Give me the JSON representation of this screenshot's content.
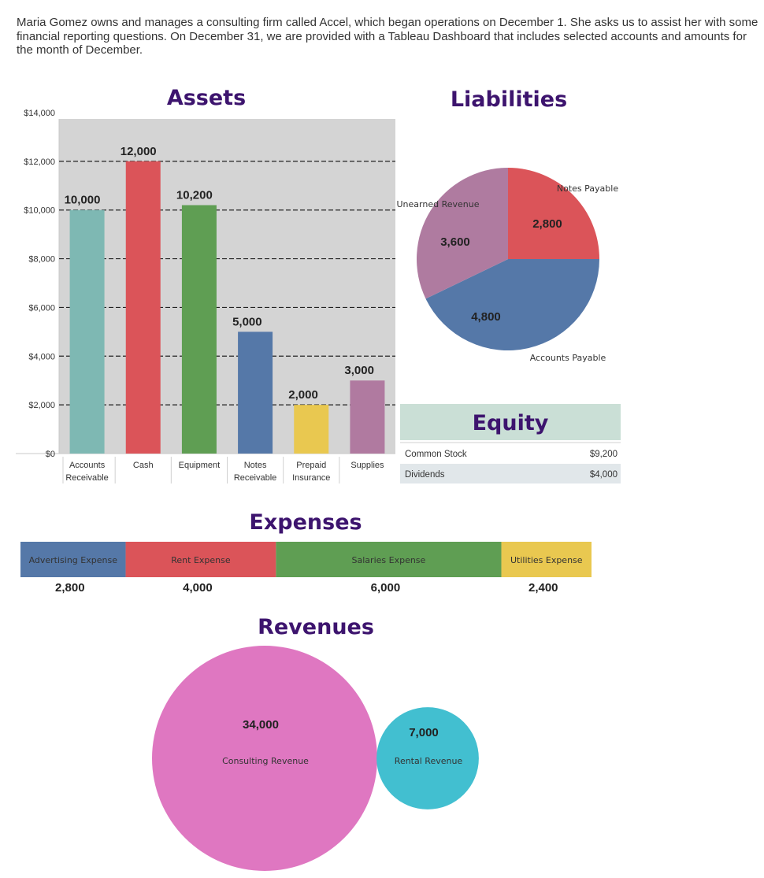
{
  "intro_text": "Maria Gomez owns and manages a consulting firm called Accel, which began operations on December 1. She asks us to assist her with some financial reporting questions. On December 31, we are provided with a Tableau Dashboard that includes selected accounts and amounts for the month of December.",
  "chart_data": [
    {
      "id": "assets",
      "type": "bar",
      "title": "Assets",
      "categories": [
        [
          "Accounts",
          "Receivable"
        ],
        [
          "Cash"
        ],
        [
          "Equipment"
        ],
        [
          "Notes",
          "Receivable"
        ],
        [
          "Prepaid",
          "Insurance"
        ],
        [
          "Supplies"
        ]
      ],
      "values": [
        10000,
        12000,
        10200,
        5000,
        2000,
        3000
      ],
      "value_labels": [
        "10,000",
        "12,000",
        "10,200",
        "5,000",
        "2,000",
        "3,000"
      ],
      "colors": [
        "#7eb8b3",
        "#db5459",
        "#5f9e53",
        "#5578a8",
        "#e9c850",
        "#b07aa0"
      ],
      "ylim": [
        0,
        14000
      ],
      "yticks": [
        0,
        2000,
        4000,
        6000,
        8000,
        10000,
        12000,
        14000
      ],
      "ytick_labels": [
        "$0",
        "$2,000",
        "$4,000",
        "$6,000",
        "$8,000",
        "$10,000",
        "$12,000",
        "$14,000"
      ],
      "grid": true
    },
    {
      "id": "liabilities",
      "type": "pie",
      "title": "Liabilities",
      "labels": [
        "Notes Payable",
        "Accounts Payable",
        "Unearned Revenue"
      ],
      "values": [
        2800,
        4800,
        3600
      ],
      "value_labels": [
        "2,800",
        "4,800",
        "3,600"
      ],
      "colors": [
        "#db5459",
        "#5578a8",
        "#af7ba0"
      ]
    },
    {
      "id": "equity",
      "type": "table",
      "title": "Equity",
      "rows": [
        {
          "label": "Common Stock",
          "value": "$9,200"
        },
        {
          "label": "Dividends",
          "value": "$4,000"
        }
      ],
      "colors": {
        "header": "#cadfd6",
        "row_alt": "#e1e7ea"
      }
    },
    {
      "id": "expenses",
      "type": "bar",
      "orientation": "stacked-horizontal",
      "title": "Expenses",
      "categories": [
        "Advertising Expense",
        "Rent Expense",
        "Salaries Expense",
        "Utilities Expense"
      ],
      "values": [
        2800,
        4000,
        6000,
        2400
      ],
      "value_labels": [
        "2,800",
        "4,000",
        "6,000",
        "2,400"
      ],
      "colors": [
        "#5578a8",
        "#db5459",
        "#5f9e53",
        "#e9c850"
      ]
    },
    {
      "id": "revenues",
      "type": "scatter",
      "style": "packed-bubbles",
      "title": "Revenues",
      "labels": [
        "Consulting Revenue",
        "Rental Revenue"
      ],
      "values": [
        34000,
        7000
      ],
      "value_labels": [
        "34,000",
        "7,000"
      ],
      "colors": [
        "#df77c1",
        "#42bfd0"
      ]
    }
  ],
  "colors": {
    "title": "#3d146e"
  }
}
